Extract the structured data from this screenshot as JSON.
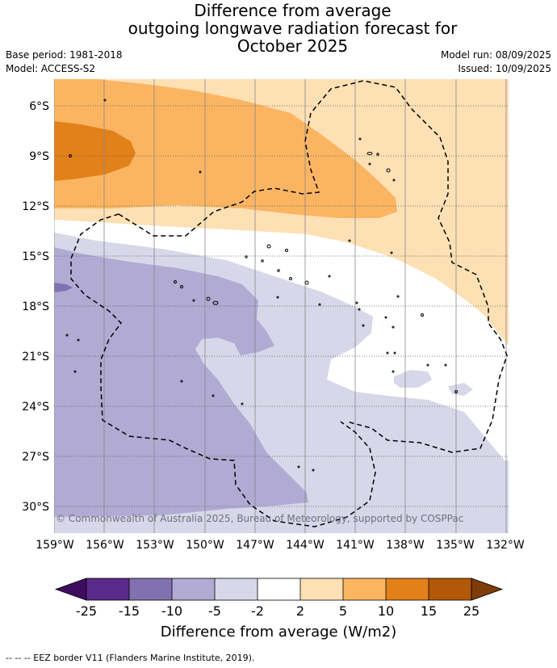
{
  "title": {
    "line1": "Difference from average",
    "line2": "outgoing longwave radiation forecast for",
    "line3": "October 2025"
  },
  "meta": {
    "base_period": "Base period: 1981-2018",
    "model": "Model: ACCESS-S2",
    "model_run": "Model run: 08/09/2025",
    "issued": "Issued: 10/09/2025"
  },
  "map": {
    "copyright": "© Commonwealth of Australia 2025, Bureau of Meteorology, supported by COSPPac",
    "lat_labels": [
      "6°S",
      "9°S",
      "12°S",
      "15°S",
      "18°S",
      "21°S",
      "24°S",
      "27°S",
      "30°S"
    ],
    "lon_labels": [
      "159°W",
      "156°W",
      "153°W",
      "150°W",
      "147°W",
      "144°W",
      "141°W",
      "138°W",
      "135°W",
      "132°W"
    ]
  },
  "colorbar": {
    "ticks": [
      "-25",
      "-15",
      "-10",
      "-5",
      "-2",
      "2",
      "5",
      "10",
      "15",
      "25"
    ],
    "colors": [
      "#3f0d5f",
      "#5b2a8a",
      "#8271b0",
      "#b1aad3",
      "#d7d7ea",
      "#ffffff",
      "#fee0b5",
      "#fbb562",
      "#e2801a",
      "#b35806",
      "#7f3b08"
    ],
    "title": "Difference from average (W/m2)"
  },
  "footnote": "-- -- -- EEZ border V11 (Flanders Marine Institute, 2019)."
}
